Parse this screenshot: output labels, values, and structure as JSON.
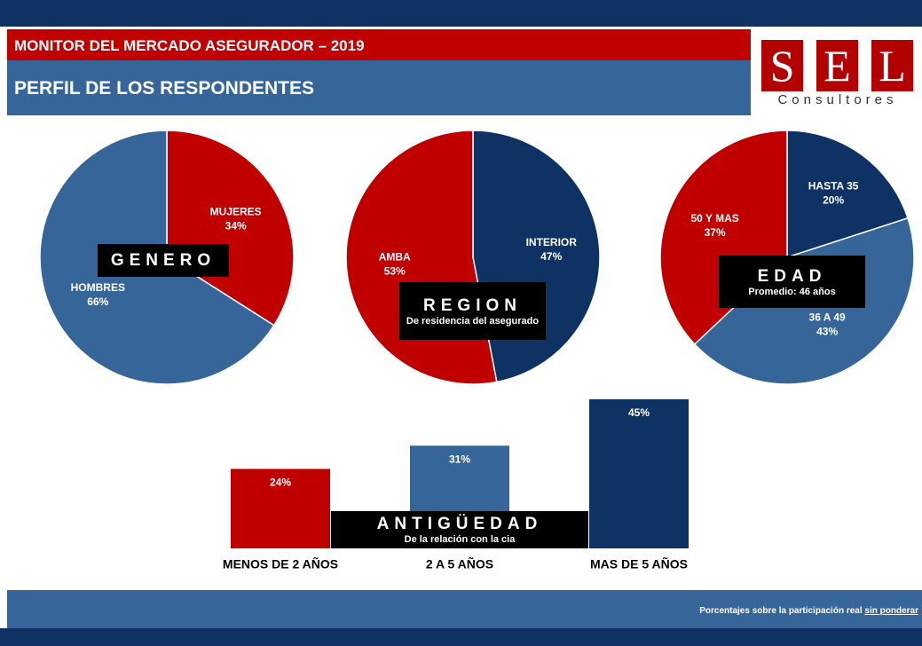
{
  "header": {
    "title": "MONITOR DEL MERCADO ASEGURADOR – 2019",
    "subtitle": "PERFIL DE LOS RESPONDENTES"
  },
  "logo": {
    "letters": [
      "S",
      "E",
      "L"
    ],
    "subtitle": "Consultores"
  },
  "chart_data": [
    {
      "type": "pie",
      "annotation": "GENERO",
      "categories": [
        "MUJERES",
        "HOMBRES"
      ],
      "values": [
        34,
        66
      ],
      "value_labels": [
        "34%",
        "66%"
      ],
      "colors": [
        "#c00000",
        "#366699"
      ]
    },
    {
      "type": "pie",
      "annotation": "REGION",
      "annotation_sub": "De residencia del asegurado",
      "categories": [
        "INTERIOR",
        "AMBA"
      ],
      "values": [
        47,
        53
      ],
      "value_labels": [
        "47%",
        "53%"
      ],
      "colors": [
        "#0e3263",
        "#c00000"
      ]
    },
    {
      "type": "pie",
      "annotation": "EDAD",
      "annotation_sub": "Promedio: 46 años",
      "categories": [
        "HASTA 35",
        "36 A 49",
        "50 Y MAS"
      ],
      "values": [
        20,
        43,
        37
      ],
      "value_labels": [
        "20%",
        "43%",
        "37%"
      ],
      "colors": [
        "#0e3263",
        "#366699",
        "#c00000"
      ]
    },
    {
      "type": "bar",
      "annotation": "ANTIGÜEDAD",
      "annotation_sub": "De la relación con la cia",
      "categories": [
        "MENOS DE 2 AÑOS",
        "2 A 5 AÑOS",
        "MAS DE 5 AÑOS"
      ],
      "values": [
        24,
        31,
        45
      ],
      "value_labels": [
        "24%",
        "31%",
        "45%"
      ],
      "colors": [
        "#c00000",
        "#366699",
        "#0e3263"
      ]
    }
  ],
  "footer": {
    "note": "Porcentajes sobre la participación real",
    "link": "sin ponderar"
  }
}
